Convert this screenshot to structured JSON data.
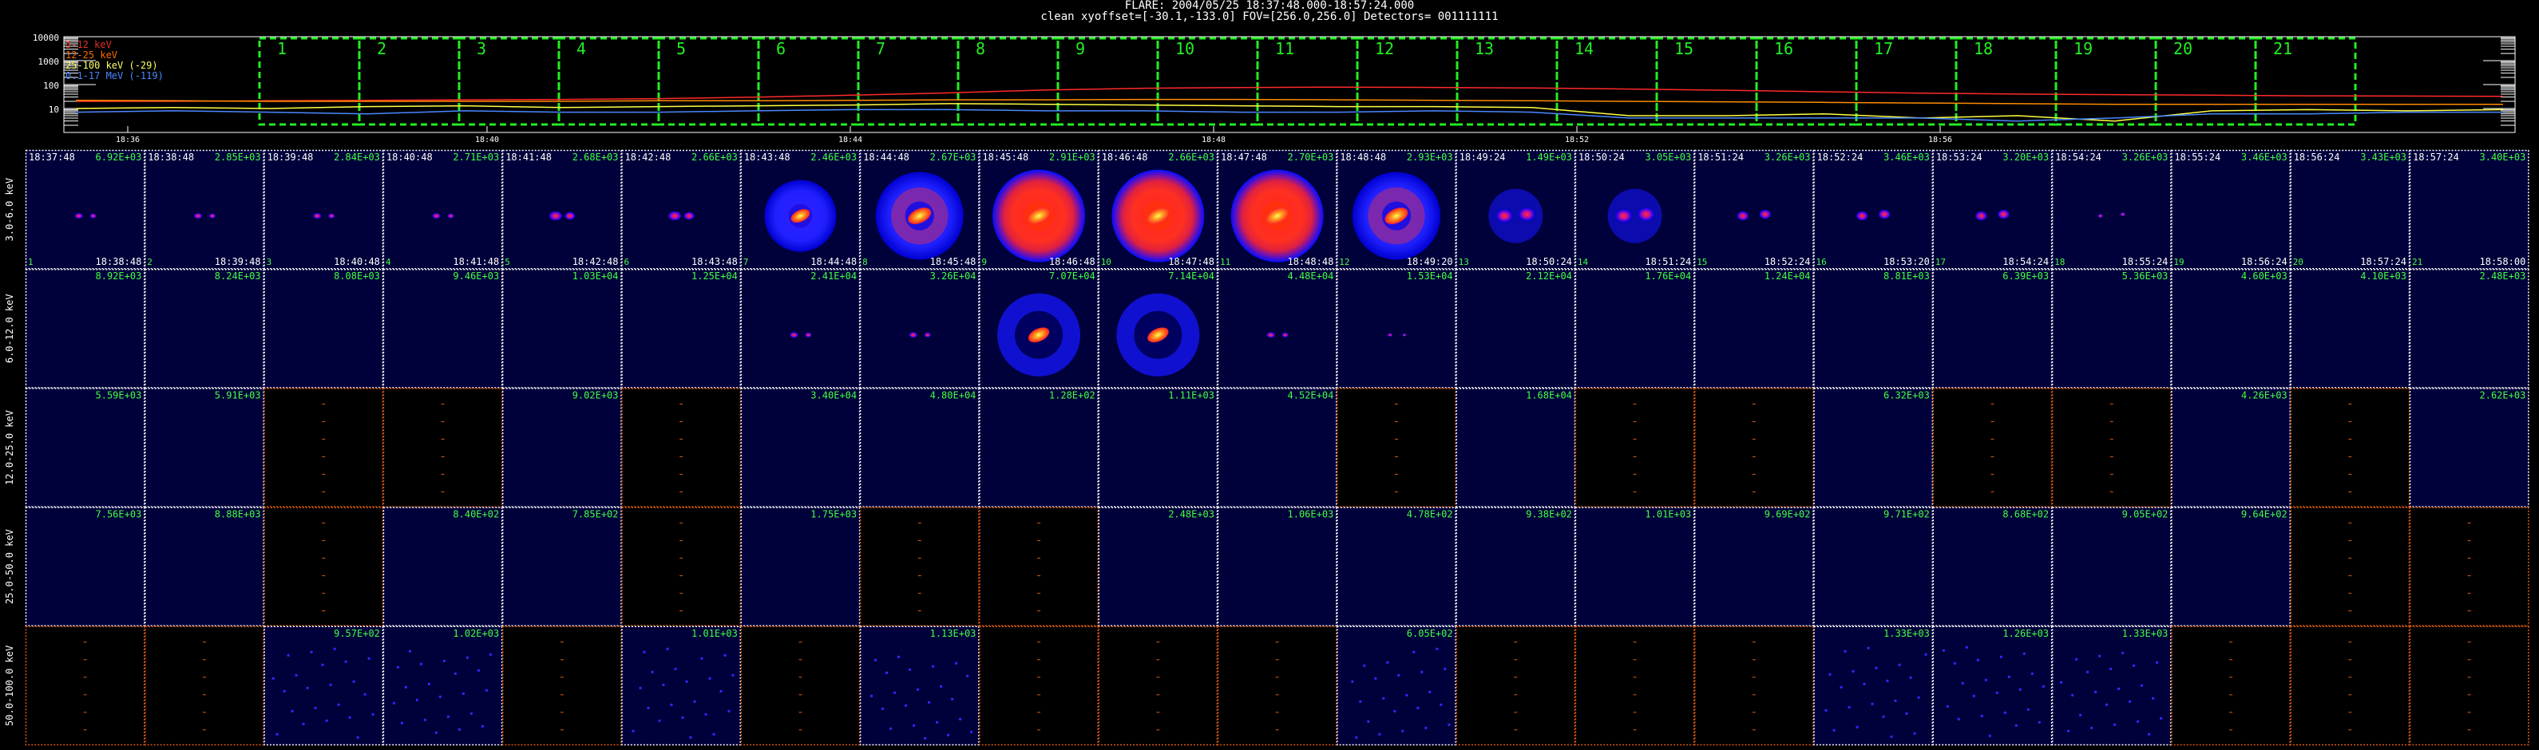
{
  "header": {
    "line1": "FLARE: 2004/05/25 18:37:48.000-18:57:24.000",
    "line2": "clean   xyoffset=[-30.1,-133.0]   FOV=[256.0,256.0]   Detectors= 001111111"
  },
  "colors": {
    "frame_white": "#ffffff",
    "frame_orange": "#e05a14",
    "interval_box": "#22ee22",
    "counts_text": "#44ff44",
    "panel_bg": "#00003a",
    "empty_bg": "#000000"
  },
  "chart_data": [
    {
      "type": "line",
      "name": "lightcurve",
      "yscale": "log",
      "ylim": [
        1,
        10000
      ],
      "yticks": [
        "10000",
        "1000",
        "100",
        "10"
      ],
      "xticks": [
        "18:36",
        "18:40",
        "18:44",
        "18:48",
        "18:52",
        "18:56"
      ],
      "legend": [
        "3-12 keV",
        "12-25 keV",
        "25-100 keV (-29)",
        "0.1-17 MeV (-119)"
      ],
      "legend_colors": [
        "#e03020",
        "#ff6a00",
        "#ffff66",
        "#4a88ff"
      ],
      "series": [
        {
          "name": "3-12 keV",
          "color": "#ff2a2a",
          "values": [
            20,
            20,
            21,
            22,
            23,
            24,
            26,
            30,
            36,
            45,
            60,
            70,
            75,
            78,
            76,
            72,
            65,
            58,
            50,
            44,
            40,
            38,
            36,
            34,
            33,
            32
          ]
        },
        {
          "name": "12-25 keV",
          "color": "#ff8c00",
          "values": [
            22,
            21,
            20,
            20,
            20,
            20,
            21,
            21,
            22,
            23,
            23,
            24,
            24,
            23,
            22,
            21,
            20,
            19,
            18,
            17,
            16,
            15,
            15,
            15,
            15,
            15
          ]
        },
        {
          "name": "25-100 keV (-29)",
          "color": "#ffff44",
          "values": [
            10,
            11,
            10,
            12,
            13,
            11,
            12,
            13,
            14,
            16,
            15,
            14,
            13,
            12,
            12,
            11,
            5,
            5,
            6,
            4,
            5,
            3,
            8,
            9,
            8,
            9
          ]
        },
        {
          "name": "0.1-17 MeV (-119)",
          "color": "#4a88ff",
          "values": [
            7,
            8,
            7,
            6,
            8,
            7,
            7,
            8,
            9,
            9,
            8,
            8,
            7,
            7,
            8,
            7,
            4,
            4,
            4,
            4,
            3,
            4,
            6,
            6,
            7,
            7
          ]
        }
      ],
      "intervals": [
        "1",
        "2",
        "3",
        "4",
        "5",
        "6",
        "7",
        "8",
        "9",
        "10",
        "11",
        "12",
        "13",
        "14",
        "15",
        "16",
        "17",
        "18",
        "19",
        "20",
        "21"
      ]
    },
    {
      "type": "heatmap",
      "name": "image_grid",
      "energy_bands": [
        "3.0-6.0 keV",
        "6.0-12.0 keV",
        "12.0-25.0 keV",
        "25.0-50.0 keV",
        "50.0-100.0 keV"
      ],
      "start_times": [
        "18:37:48",
        "18:38:48",
        "18:39:48",
        "18:40:48",
        "18:41:48",
        "18:42:48",
        "18:43:48",
        "18:44:48",
        "18:45:48",
        "18:46:48",
        "18:47:48",
        "18:48:48",
        "18:49:24",
        "18:50:24",
        "18:51:24",
        "18:52:24",
        "18:53:24",
        "18:54:24",
        "18:55:24",
        "18:56:24",
        "18:57:24"
      ],
      "end_times": [
        "18:38:48",
        "18:39:48",
        "18:40:48",
        "18:41:48",
        "18:42:48",
        "18:43:48",
        "18:44:48",
        "18:45:48",
        "18:46:48",
        "18:47:48",
        "18:48:48",
        "18:49:20",
        "18:50:24",
        "18:51:24",
        "18:52:24",
        "18:53:20",
        "18:54:24",
        "18:55:24",
        "18:56:24",
        "18:57:24",
        "18:58:00"
      ],
      "interval_numbers": [
        "1",
        "2",
        "3",
        "4",
        "5",
        "6",
        "7",
        "8",
        "9",
        "10",
        "11",
        "12",
        "13",
        "14",
        "15",
        "16",
        "17",
        "18",
        "19",
        "20",
        "21"
      ],
      "counts": [
        [
          "6.92E+03",
          "2.85E+03",
          "2.84E+03",
          "2.71E+03",
          "2.68E+03",
          "2.66E+03",
          "2.46E+03",
          "2.67E+03",
          "2.91E+03",
          "2.66E+03",
          "2.70E+03",
          "2.93E+03",
          "1.49E+03",
          "3.05E+03",
          "3.26E+03",
          "3.46E+03",
          "3.20E+03",
          "3.26E+03",
          "3.46E+03",
          "3.43E+03",
          "3.40E+03"
        ],
        [
          "8.92E+03",
          "8.24E+03",
          "8.08E+03",
          "9.46E+03",
          "1.03E+04",
          "1.25E+04",
          "2.41E+04",
          "3.26E+04",
          "7.07E+04",
          "7.14E+04",
          "4.48E+04",
          "1.53E+04",
          "2.12E+04",
          "1.76E+04",
          "1.24E+04",
          "8.81E+03",
          "6.39E+03",
          "5.36E+03",
          "4.60E+03",
          "4.10E+03",
          "2.48E+03"
        ],
        [
          "5.59E+03",
          "5.91E+03",
          "",
          "",
          "9.02E+03",
          "",
          "3.40E+04",
          "4.80E+04",
          "1.28E+02",
          "1.11E+03",
          "4.52E+04",
          "",
          "1.68E+04",
          "",
          "",
          "6.32E+03",
          "",
          "",
          "4.26E+03",
          "",
          "2.62E+03"
        ],
        [
          "7.56E+03",
          "8.88E+03",
          "",
          "8.40E+02",
          "7.85E+02",
          "",
          "1.75E+03",
          "",
          "",
          "2.48E+03",
          "1.06E+03",
          "4.78E+02",
          "9.38E+02",
          "1.01E+03",
          "9.69E+02",
          "9.71E+02",
          "8.68E+02",
          "9.05E+02",
          "9.64E+02",
          "",
          ""
        ],
        [
          "",
          "",
          "9.57E+02",
          "1.02E+03",
          "",
          "1.01E+03",
          "",
          "1.13E+03",
          "",
          "",
          "",
          "6.05E+02",
          "",
          "",
          "",
          "1.33E+03",
          "1.26E+03",
          "1.33E+03",
          "",
          "",
          ""
        ]
      ],
      "cells": [
        [
          "w1",
          "w1",
          "w1",
          "w1",
          "w2",
          "w2",
          "d1",
          "d2",
          "d3",
          "d3",
          "d3",
          "d2",
          "p2",
          "p2",
          "p1",
          "p1",
          "p1",
          "p0",
          "e",
          "e",
          "e"
        ],
        [
          "e",
          "e",
          "e",
          "e",
          "e",
          "e",
          "w1",
          "w1",
          "r1",
          "r1",
          "w1",
          "w0",
          "e",
          "e",
          "e",
          "e",
          "e",
          "e",
          "e",
          "e",
          "e"
        ],
        [
          "e",
          "e",
          "x",
          "x",
          "e",
          "x",
          "e",
          "e",
          "e",
          "e",
          "e",
          "x",
          "e",
          "x",
          "x",
          "e",
          "x",
          "x",
          "e",
          "x",
          "e"
        ],
        [
          "e",
          "e",
          "x",
          "e",
          "e",
          "x",
          "e",
          "x",
          "x",
          "e",
          "e",
          "e",
          "e",
          "e",
          "e",
          "e",
          "e",
          "e",
          "e",
          "x",
          "x"
        ],
        [
          "x",
          "x",
          "n",
          "n",
          "x",
          "n",
          "x",
          "n",
          "x",
          "x",
          "x",
          "n",
          "x",
          "x",
          "x",
          "n",
          "n",
          "n",
          "x",
          "x",
          "x"
        ]
      ]
    }
  ]
}
